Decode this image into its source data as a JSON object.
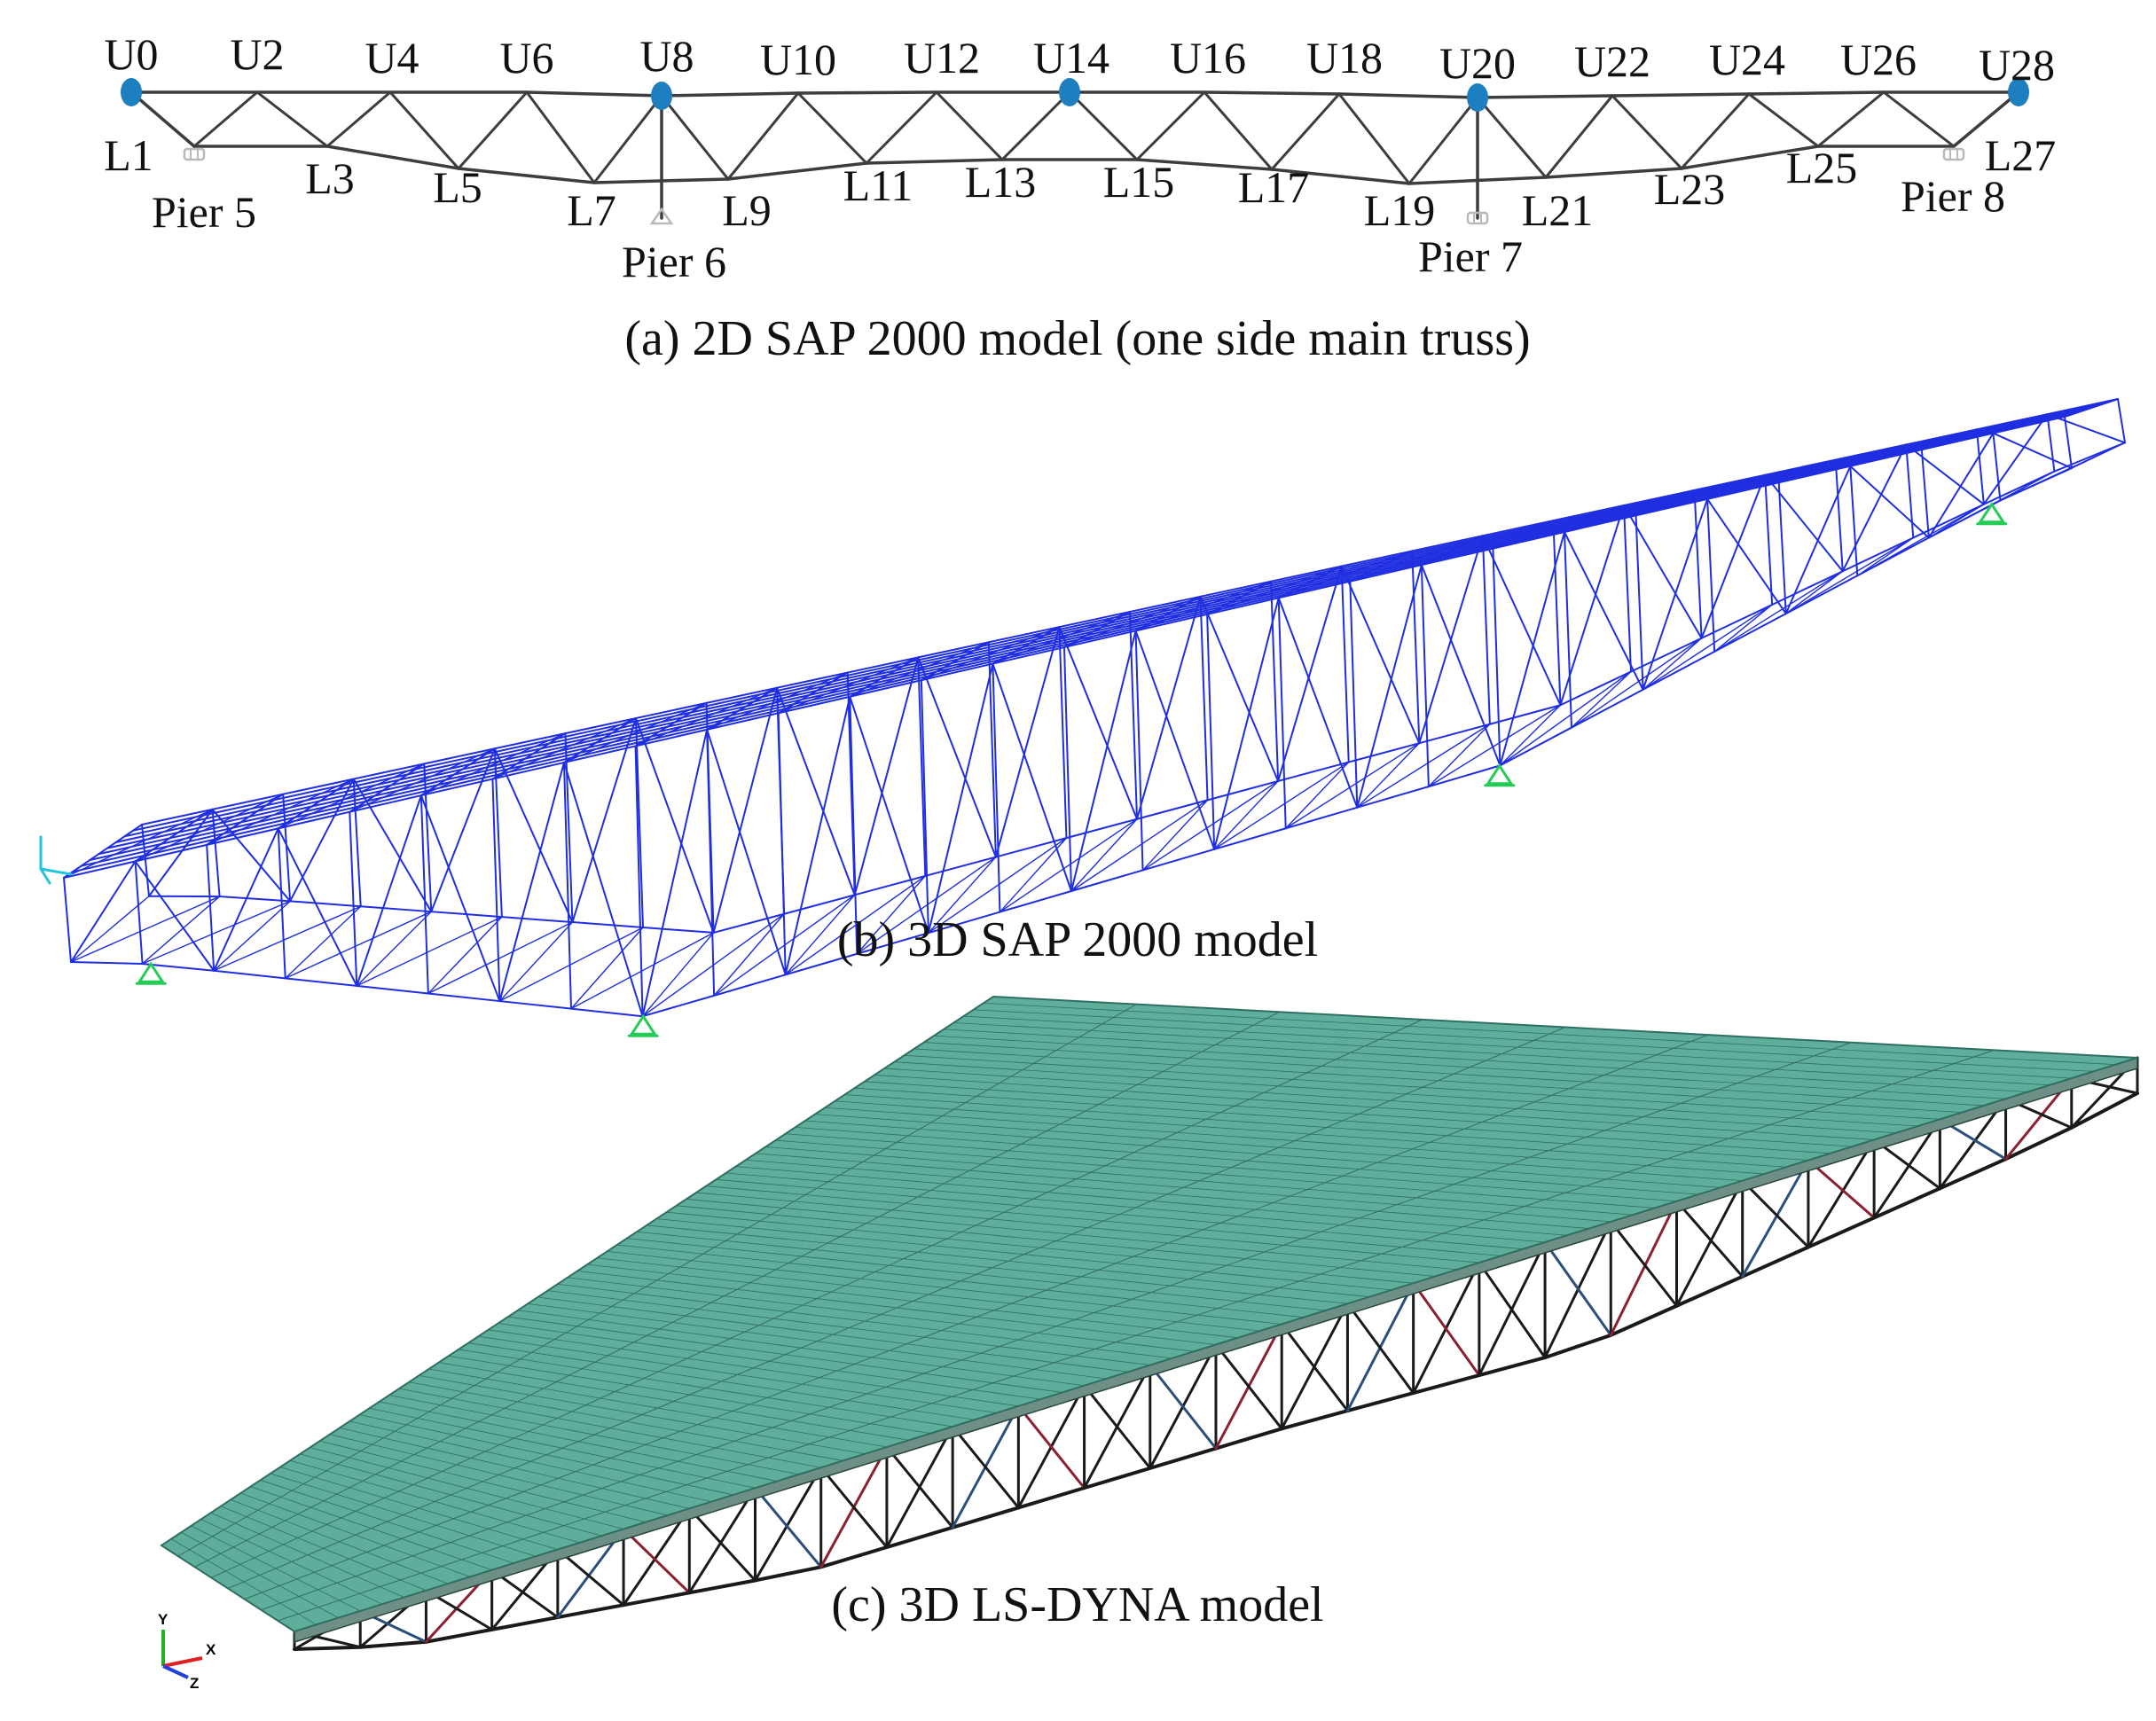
{
  "upper_nodes": [
    "U0",
    "U2",
    "U4",
    "U6",
    "U8",
    "U10",
    "U12",
    "U14",
    "U16",
    "U18",
    "U20",
    "U22",
    "U24",
    "U26",
    "U28"
  ],
  "lower_nodes": [
    "L1",
    "L3",
    "L5",
    "L7",
    "L9",
    "L11",
    "L13",
    "L15",
    "L17",
    "L19",
    "L21",
    "L23",
    "L25",
    "L27"
  ],
  "piers": [
    "Pier 5",
    "Pier 6",
    "Pier 7",
    "Pier 8"
  ],
  "captions": {
    "a": "(a) 2D SAP 2000 model (one side main truss)",
    "b": "(b) 3D SAP 2000 model",
    "c": "(c) 3D LS-DYNA model"
  },
  "triad": {
    "y": "Y",
    "x": "X",
    "z": "Z"
  },
  "colors": {
    "truss_line": "#3d3d3d",
    "node_marker": "#1e7fc0",
    "sap_frame": "#1f2ee0",
    "support": "#22cc55",
    "deck": "#5fae9c",
    "deck_grid": "#2f6f62",
    "ls_frame": "#1a1a1a",
    "ls_member_red": "#8a2030",
    "ls_member_blue": "#2a4f7a",
    "pier_support": "#b9b9b9",
    "axis_x": "#e02020",
    "axis_y": "#20b020",
    "axis_z": "#2040e0"
  }
}
